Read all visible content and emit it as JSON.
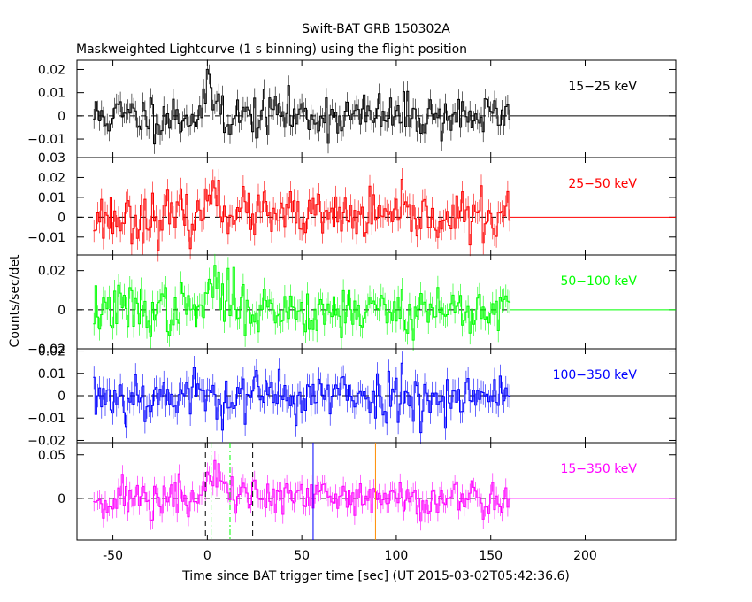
{
  "header": {
    "title": "Swift-BAT GRB 150302A",
    "subtitle": "Maskweighted Lightcurve (1 s binning) using the flight position"
  },
  "axes": {
    "xlabel": "Time since BAT trigger time [sec] (UT 2015-03-02T05:42:36.6)",
    "ylabel": "Counts/sec/det"
  },
  "chart_data": {
    "type": "line",
    "title": "Swift-BAT GRB 150302A",
    "subtitle": "Maskweighted Lightcurve (1 s binning) using the flight position",
    "xlabel": "Time since BAT trigger time [sec] (UT 2015-03-02T05:42:36.6)",
    "ylabel": "Counts/sec/det",
    "xlim": [
      -69,
      248
    ],
    "x_ticks": [
      -50,
      0,
      50,
      100,
      150,
      200
    ],
    "x_tick_labels": [
      "-50",
      "0",
      "50",
      "100",
      "150",
      "200"
    ],
    "data_range": [
      -60,
      160
    ],
    "binning_s": 1,
    "grid": false,
    "panels": [
      {
        "name": "15-25 keV",
        "label": "15−25 keV",
        "color": "#000000",
        "ylim": [
          -0.018,
          0.024
        ],
        "yticks": [
          0.02,
          0.01,
          0,
          -0.01
        ],
        "ytick_labels": [
          "0.02",
          "0.01",
          "0",
          "−0.01"
        ],
        "baseline": "solid",
        "noise": 0.0048,
        "seed": 11,
        "pulse": [
          [
            -2,
            8,
            0.01
          ],
          [
            20,
            14,
            0.003
          ],
          [
            35,
            40,
            0.004
          ]
        ]
      },
      {
        "name": "25-50 keV",
        "label": "25−50 keV",
        "color": "#ff0000",
        "ylim": [
          -0.019,
          0.03
        ],
        "yticks": [
          0.03,
          0.02,
          0.01,
          0,
          -0.01
        ],
        "ytick_labels": [
          "0.03",
          "0.02",
          "0.01",
          "0",
          "−0.01"
        ],
        "baseline": "dashed",
        "noise": 0.0062,
        "seed": 23,
        "pulse": [
          [
            0,
            6,
            0.016
          ],
          [
            6,
            18,
            0.006
          ],
          [
            20,
            30,
            0.003
          ]
        ]
      },
      {
        "name": "50-100 keV",
        "label": "50−100 keV",
        "color": "#00ff00",
        "ylim": [
          -0.02,
          0.028
        ],
        "yticks": [
          0.02,
          0,
          -0.02
        ],
        "ytick_labels": [
          "0.02",
          "0",
          "−0.02"
        ],
        "baseline": "dashed",
        "noise": 0.0065,
        "seed": 37,
        "pulse": [
          [
            0,
            6,
            0.014
          ],
          [
            6,
            14,
            0.008
          ],
          [
            14,
            26,
            0.003
          ]
        ]
      },
      {
        "name": "100-350 keV",
        "label": "100−350 keV",
        "color": "#0000ff",
        "ylim": [
          -0.021,
          0.021
        ],
        "yticks": [
          0.02,
          0.01,
          0,
          -0.01,
          -0.02
        ],
        "ytick_labels": [
          "0.02",
          "0.01",
          "0",
          "−0.01",
          "−0.02"
        ],
        "baseline": "solid",
        "noise": 0.0058,
        "seed": 53,
        "pulse": []
      },
      {
        "name": "15-350 keV",
        "label": "15−350 keV",
        "color": "#ff00ff",
        "ylim": [
          -0.048,
          0.064
        ],
        "yticks": [
          0.05,
          0
        ],
        "ytick_labels": [
          "0.05",
          "0"
        ],
        "baseline": "dashed",
        "noise": 0.012,
        "seed": 71,
        "pulse": [
          [
            0,
            6,
            0.032
          ],
          [
            6,
            16,
            0.014
          ],
          [
            16,
            30,
            0.005
          ]
        ],
        "markers": [
          {
            "x": -1,
            "color": "#000000",
            "style": "dashed"
          },
          {
            "x": 2,
            "color": "#00ff00",
            "style": "dashdot"
          },
          {
            "x": 12,
            "color": "#00ff00",
            "style": "dashdot"
          },
          {
            "x": 24,
            "color": "#000000",
            "style": "dashed"
          },
          {
            "x": 56,
            "color": "#0000ff",
            "style": "solid"
          },
          {
            "x": 89,
            "color": "#ff8c00",
            "style": "solid"
          }
        ]
      }
    ]
  }
}
